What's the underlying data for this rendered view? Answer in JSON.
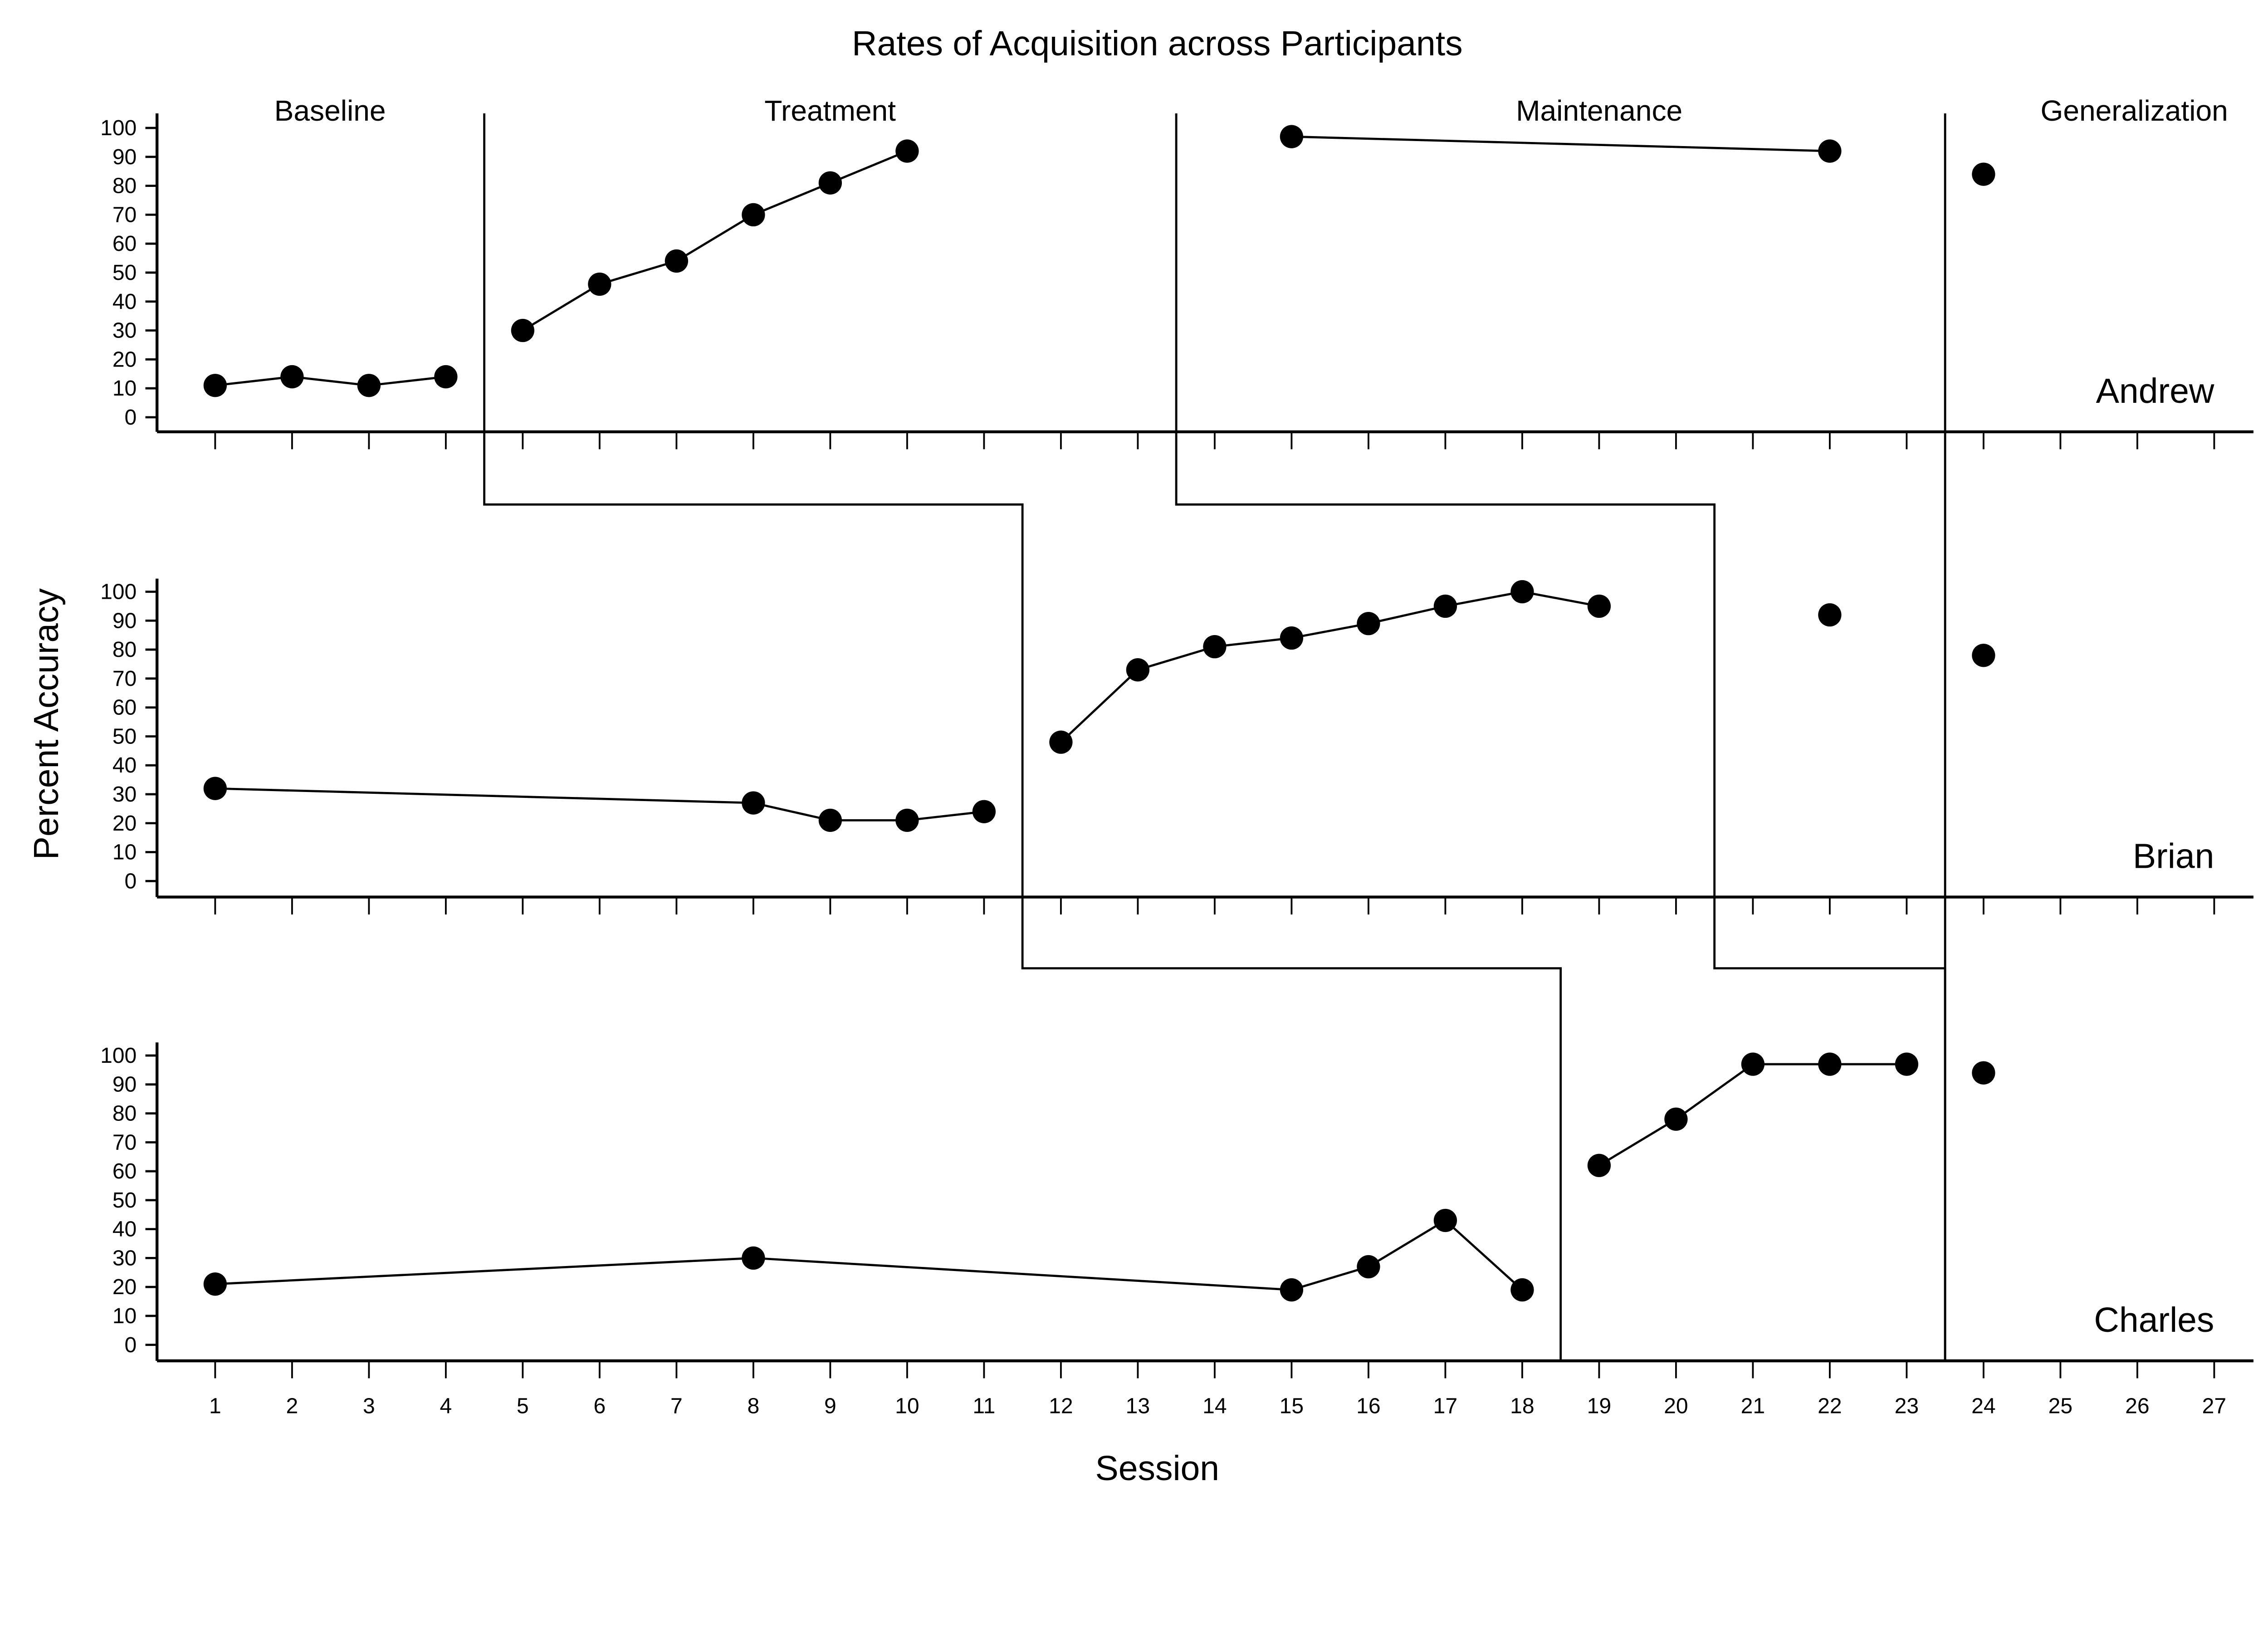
{
  "chart_data": {
    "type": "line",
    "title": "Rates of Acquisition across Participants",
    "xlabel": "Session",
    "ylabel": "Percent Accuracy",
    "x_ticks": [
      1,
      2,
      3,
      4,
      5,
      6,
      7,
      8,
      9,
      10,
      11,
      12,
      13,
      14,
      15,
      16,
      17,
      18,
      19,
      20,
      21,
      22,
      23,
      24,
      25,
      26,
      27
    ],
    "y_ticks": [
      0,
      10,
      20,
      30,
      40,
      50,
      60,
      70,
      80,
      90,
      100
    ],
    "xlim": [
      1,
      27
    ],
    "ylim": [
      0,
      100
    ],
    "grid": false,
    "phase_labels": [
      "Baseline",
      "Treatment",
      "Maintenance",
      "Generalization"
    ],
    "panels": [
      {
        "name": "Andrew",
        "phase_changes": [
          4.5,
          13.5,
          23.5
        ],
        "segments": [
          {
            "x": [
              1,
              2,
              3,
              4
            ],
            "y": [
              11,
              14,
              11,
              14
            ]
          },
          {
            "x": [
              5,
              6,
              7,
              8,
              9,
              10
            ],
            "y": [
              30,
              46,
              54,
              70,
              81,
              92
            ]
          },
          {
            "x": [
              15,
              22
            ],
            "y": [
              97,
              92
            ]
          },
          {
            "x": [
              24
            ],
            "y": [
              84
            ]
          }
        ]
      },
      {
        "name": "Brian",
        "phase_changes": [
          11.5,
          20.5,
          23.5
        ],
        "segments": [
          {
            "x": [
              1,
              8,
              9,
              10,
              11
            ],
            "y": [
              32,
              27,
              21,
              21,
              24
            ]
          },
          {
            "x": [
              12,
              13,
              14,
              15,
              16,
              17,
              18,
              19
            ],
            "y": [
              48,
              73,
              81,
              84,
              89,
              95,
              100,
              95
            ]
          },
          {
            "x": [
              22
            ],
            "y": [
              92
            ]
          },
          {
            "x": [
              24
            ],
            "y": [
              78
            ]
          }
        ]
      },
      {
        "name": "Charles",
        "phase_changes": [
          18.5,
          23.5
        ],
        "segments": [
          {
            "x": [
              1,
              8,
              15,
              16,
              17,
              18
            ],
            "y": [
              21,
              30,
              19,
              27,
              43,
              19
            ]
          },
          {
            "x": [
              19,
              20,
              21,
              22,
              23
            ],
            "y": [
              62,
              78,
              97,
              97,
              97
            ]
          },
          {
            "x": [
              24
            ],
            "y": [
              94
            ]
          }
        ]
      }
    ]
  }
}
